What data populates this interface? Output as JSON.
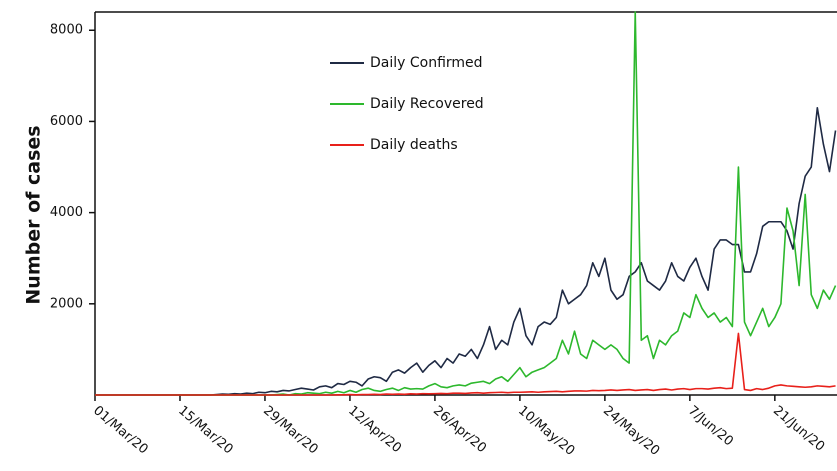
{
  "chart_data": {
    "type": "line",
    "y_label": "Number of cases",
    "categories": [
      "01/Mar/20",
      null,
      null,
      null,
      null,
      null,
      null,
      null,
      null,
      null,
      null,
      null,
      null,
      null,
      "15/Mar/20",
      null,
      null,
      null,
      null,
      null,
      null,
      null,
      null,
      null,
      null,
      null,
      null,
      null,
      "29/Mar/20",
      null,
      null,
      null,
      null,
      null,
      null,
      null,
      null,
      null,
      null,
      null,
      null,
      null,
      "12/Apr/20",
      null,
      null,
      null,
      null,
      null,
      null,
      null,
      null,
      null,
      null,
      null,
      null,
      null,
      "26/Apr/20",
      null,
      null,
      null,
      null,
      null,
      null,
      null,
      null,
      null,
      null,
      null,
      null,
      null,
      "10/May/20",
      null,
      null,
      null,
      null,
      null,
      null,
      null,
      null,
      null,
      null,
      null,
      null,
      null,
      "24/May/20",
      null,
      null,
      null,
      null,
      null,
      null,
      null,
      null,
      null,
      null,
      null,
      null,
      null,
      "7/Jun/20",
      null,
      null,
      null,
      null,
      null,
      null,
      null,
      null,
      null,
      null,
      null,
      null,
      null,
      "21/Jun/20",
      null,
      null,
      null,
      null,
      null,
      null,
      null,
      null,
      null,
      null
    ],
    "series": [
      {
        "name": "Daily Confirmed",
        "color": "#1f2a44",
        "values": [
          0,
          0,
          0,
          0,
          0,
          0,
          0,
          0,
          0,
          0,
          0,
          0,
          0,
          0,
          0,
          0,
          0,
          0,
          0,
          0,
          10,
          20,
          15,
          30,
          20,
          40,
          30,
          60,
          50,
          80,
          70,
          100,
          90,
          120,
          150,
          130,
          110,
          180,
          200,
          160,
          250,
          230,
          300,
          280,
          200,
          350,
          400,
          380,
          300,
          500,
          550,
          480,
          600,
          700,
          500,
          650,
          750,
          600,
          800,
          700,
          900,
          850,
          1000,
          800,
          1100,
          1500,
          1000,
          1200,
          1100,
          1600,
          1900,
          1300,
          1100,
          1500,
          1600,
          1550,
          1700,
          2300,
          2000,
          2100,
          2200,
          2400,
          2900,
          2600,
          3000,
          2300,
          2100,
          2200,
          2600,
          2700,
          2900,
          2500,
          2400,
          2300,
          2500,
          2900,
          2600,
          2500,
          2800,
          3000,
          2600,
          2300,
          3200,
          3400,
          3400,
          3300,
          3300,
          2700,
          2700,
          3100,
          3700,
          3800,
          3800,
          3800,
          3600,
          3200,
          4200,
          4800,
          5000,
          6300,
          5500,
          4900,
          5800
        ]
      },
      {
        "name": "Daily Recovered",
        "color": "#2db82d",
        "values": [
          0,
          0,
          0,
          0,
          0,
          0,
          0,
          0,
          0,
          0,
          0,
          0,
          0,
          0,
          0,
          0,
          0,
          0,
          0,
          0,
          0,
          0,
          0,
          0,
          0,
          0,
          0,
          0,
          0,
          0,
          10,
          20,
          0,
          30,
          20,
          50,
          40,
          30,
          60,
          40,
          80,
          50,
          100,
          60,
          120,
          150,
          100,
          80,
          120,
          150,
          100,
          160,
          130,
          140,
          130,
          200,
          250,
          180,
          160,
          200,
          220,
          200,
          260,
          280,
          300,
          250,
          350,
          400,
          300,
          450,
          600,
          400,
          500,
          550,
          600,
          700,
          800,
          1200,
          900,
          1400,
          900,
          800,
          1200,
          1100,
          1000,
          1100,
          1000,
          800,
          700,
          8400,
          1200,
          1300,
          800,
          1200,
          1100,
          1300,
          1400,
          1800,
          1700,
          2200,
          1900,
          1700,
          1800,
          1600,
          1700,
          1500,
          5000,
          1600,
          1300,
          1600,
          1900,
          1500,
          1700,
          2000,
          4100,
          3600,
          2400,
          4400,
          2200,
          1900,
          2300,
          2100,
          2400
        ]
      },
      {
        "name": "Daily deaths",
        "color": "#e8201a",
        "values": [
          0,
          0,
          0,
          0,
          0,
          0,
          0,
          0,
          0,
          0,
          0,
          0,
          0,
          0,
          0,
          0,
          0,
          0,
          0,
          0,
          0,
          0,
          0,
          0,
          0,
          0,
          0,
          0,
          0,
          0,
          0,
          0,
          0,
          0,
          0,
          0,
          0,
          0,
          0,
          0,
          5,
          5,
          10,
          5,
          10,
          10,
          15,
          10,
          20,
          15,
          20,
          15,
          25,
          20,
          30,
          25,
          30,
          35,
          30,
          40,
          40,
          35,
          45,
          50,
          40,
          50,
          55,
          60,
          50,
          60,
          60,
          65,
          70,
          60,
          70,
          75,
          80,
          70,
          80,
          90,
          90,
          85,
          100,
          95,
          100,
          110,
          100,
          110,
          120,
          100,
          110,
          120,
          100,
          120,
          130,
          110,
          130,
          140,
          120,
          140,
          140,
          130,
          150,
          160,
          140,
          150,
          1350,
          120,
          100,
          140,
          120,
          150,
          200,
          220,
          200,
          190,
          180,
          170,
          180,
          200,
          190,
          180,
          200
        ]
      }
    ],
    "ylim": [
      0,
      8400
    ],
    "yticks": [
      2000,
      4000,
      6000,
      8000
    ],
    "grid": false,
    "legend": "upper center"
  }
}
